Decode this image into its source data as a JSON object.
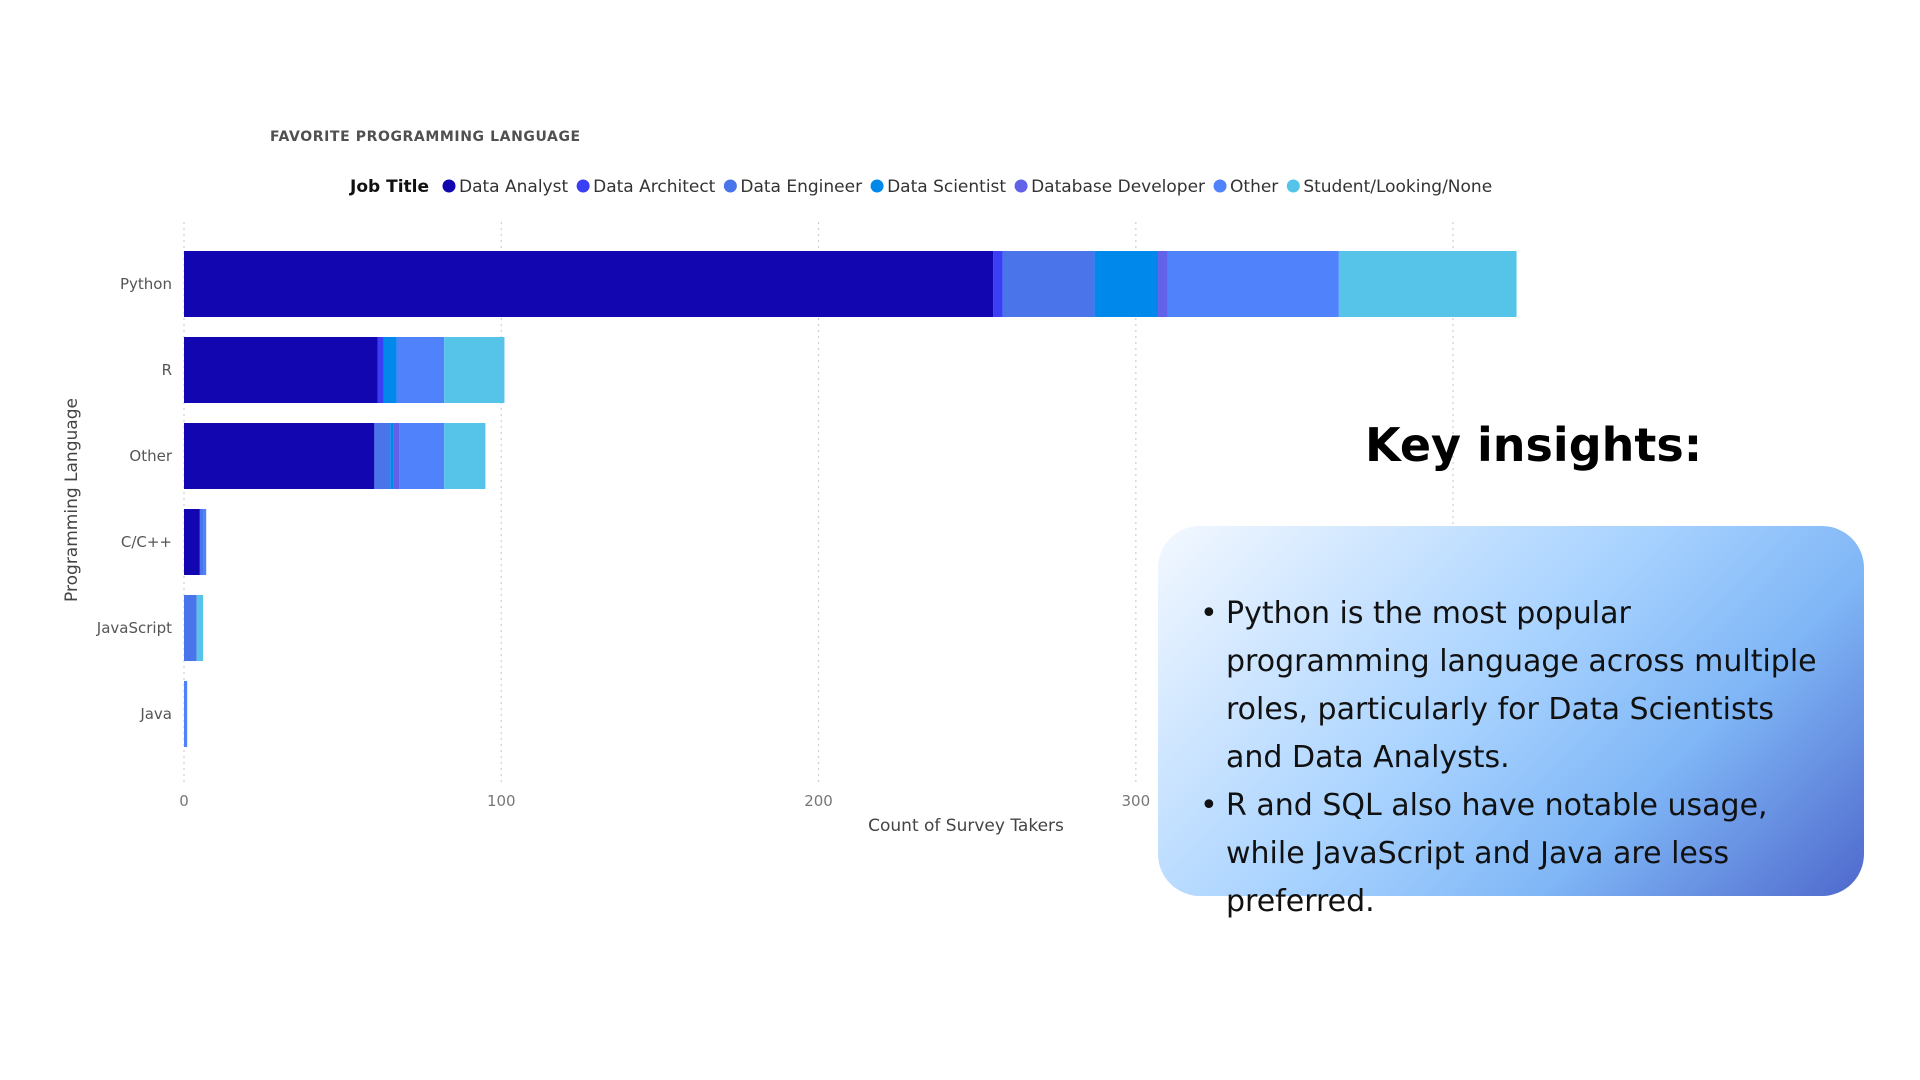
{
  "chart_data": {
    "type": "bar",
    "orientation": "horizontal",
    "stacked": true,
    "title": "FAVORITE PROGRAMMING LANGUAGE",
    "legend": {
      "title": "Job Title",
      "placement": "top"
    },
    "categories": [
      "Python",
      "R",
      "Other",
      "C/C++",
      "JavaScript",
      "Java"
    ],
    "series": [
      {
        "name": "Data Analyst",
        "color": "#1106b0",
        "values": [
          255,
          61,
          60,
          5,
          0,
          0
        ]
      },
      {
        "name": "Data Architect",
        "color": "#3a3ff5",
        "values": [
          3,
          2,
          0,
          0,
          0,
          0
        ]
      },
      {
        "name": "Data Engineer",
        "color": "#4a75ea",
        "values": [
          29,
          0,
          5,
          1,
          4,
          0
        ]
      },
      {
        "name": "Data Scientist",
        "color": "#0088ea",
        "values": [
          20,
          4,
          1,
          0,
          0,
          0
        ]
      },
      {
        "name": "Database Developer",
        "color": "#6262e8",
        "values": [
          3,
          0,
          2,
          0,
          0,
          0
        ]
      },
      {
        "name": "Other",
        "color": "#4f82fb",
        "values": [
          54,
          15,
          14,
          1,
          0,
          1
        ]
      },
      {
        "name": "Student/Looking/None",
        "color": "#55c4e8",
        "values": [
          56,
          19,
          13,
          0,
          2,
          0
        ]
      }
    ],
    "xlabel": "Count of Survey Takers",
    "ylabel": "Programming Language",
    "xlim": [
      0,
      440
    ],
    "xticks": [
      0,
      100,
      200,
      300,
      400
    ],
    "grid": "vertical"
  },
  "insights": {
    "heading": "Key insights:",
    "bullets": [
      "Python is the most popular programming language across multiple roles, particularly for Data Scientists and Data Analysts.",
      "R and SQL also have notable usage, while JavaScript and Java are less preferred."
    ]
  }
}
